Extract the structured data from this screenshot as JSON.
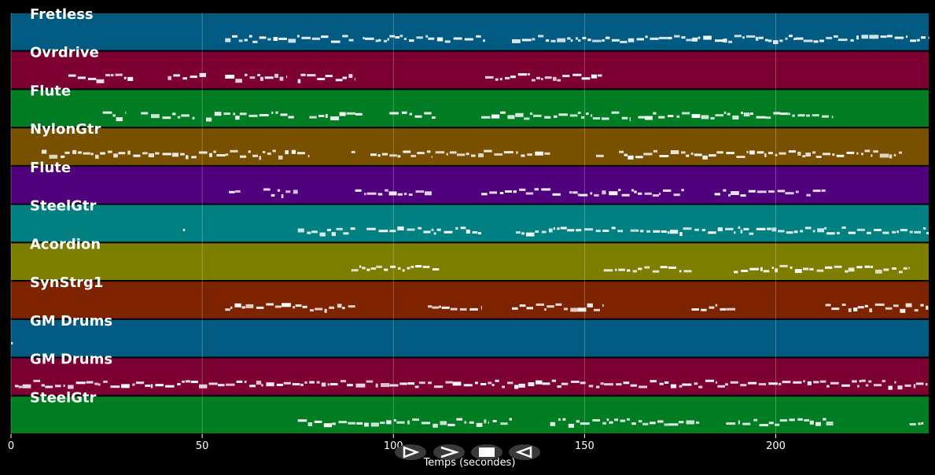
{
  "chart_data": {
    "type": "piano-roll",
    "xlabel": "Temps (secondes)",
    "xlim": [
      0,
      240
    ],
    "xticks": [
      0,
      50,
      100,
      150,
      200
    ],
    "grid": true,
    "tracks": [
      {
        "name": "Fretless",
        "color": "#005a82",
        "segments": [
          [
            56,
            90
          ],
          [
            92,
            124
          ],
          [
            131,
            198
          ],
          [
            198,
            240
          ]
        ]
      },
      {
        "name": "Ovrdrive",
        "color": "#7d0032",
        "segments": [
          [
            15,
            32
          ],
          [
            41,
            51
          ],
          [
            56,
            72
          ],
          [
            75,
            90
          ],
          [
            124,
            155
          ]
        ]
      },
      {
        "name": "Flute",
        "color": "#007d23",
        "segments": [
          [
            24,
            30
          ],
          [
            34,
            48
          ],
          [
            51,
            74
          ],
          [
            78,
            92
          ],
          [
            99,
            111
          ],
          [
            123,
            162
          ],
          [
            164,
            215
          ]
        ]
      },
      {
        "name": "NylonGtr",
        "color": "#785000",
        "segments": [
          [
            8,
            78
          ],
          [
            89,
            90
          ],
          [
            94,
            110
          ],
          [
            111,
            141
          ],
          [
            153,
            155
          ],
          [
            159,
            233
          ]
        ]
      },
      {
        "name": "Flute",
        "color": "#50007d",
        "segments": [
          [
            57,
            60
          ],
          [
            66,
            75
          ],
          [
            90,
            110
          ],
          [
            123,
            144
          ],
          [
            146,
            176
          ],
          [
            184,
            206
          ],
          [
            208,
            213
          ]
        ]
      },
      {
        "name": "SteelGtr",
        "color": "#008080",
        "segments": [
          [
            45,
            45.5
          ],
          [
            75,
            90
          ],
          [
            93,
            123
          ],
          [
            132,
            160
          ],
          [
            162,
            240
          ]
        ]
      },
      {
        "name": "Acordion",
        "color": "#7d7d00",
        "segments": [
          [
            89,
            112
          ],
          [
            155,
            178
          ],
          [
            189,
            235
          ]
        ]
      },
      {
        "name": "SynStrg1",
        "color": "#7d2300",
        "segments": [
          [
            56,
            90
          ],
          [
            109,
            123
          ],
          [
            131,
            155
          ],
          [
            178,
            190
          ],
          [
            213,
            240
          ]
        ]
      },
      {
        "name": "GM Drums",
        "color": "#005a82",
        "segments": [
          [
            0,
            0.5
          ]
        ]
      },
      {
        "name": "GM Drums",
        "color": "#7d0032",
        "segments": [
          [
            1,
            240
          ]
        ]
      },
      {
        "name": "SteelGtr",
        "color": "#007d23",
        "segments": [
          [
            75,
            125
          ],
          [
            126,
            127
          ],
          [
            128,
            131
          ],
          [
            141,
            180
          ],
          [
            187,
            215
          ],
          [
            235,
            239
          ]
        ]
      }
    ]
  },
  "controls": [
    {
      "name": "play-button",
      "symbol": "play"
    },
    {
      "name": "fast-forward-button",
      "symbol": "fast-forward"
    },
    {
      "name": "stop-button",
      "symbol": "stop"
    },
    {
      "name": "rewind-button",
      "symbol": "rewind"
    }
  ]
}
